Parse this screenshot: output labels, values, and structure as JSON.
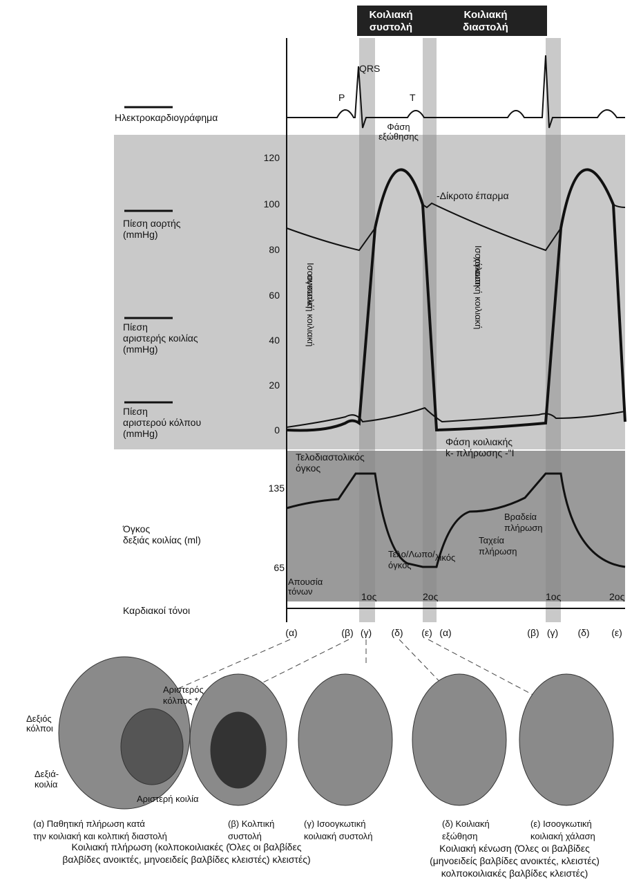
{
  "header": {
    "systole": [
      "Κοιλιακή",
      "συστολή"
    ],
    "diastole": [
      "Κοιλιακή",
      "διαστολή"
    ]
  },
  "rows": {
    "ecg": "Ηλεκτροκαρδιογράφημα",
    "aortic": [
      "Πίεση     αορτής",
      "(mmHg)"
    ],
    "ventricle": [
      "Πίεση",
      "αριστερής      κοιλίας",
      "(mmHg)"
    ],
    "atrium": [
      "Πίεση",
      "αριστερού       κόλπου",
      "(mmHg)"
    ],
    "volume": [
      "Όγκος",
      "δεξιάς κοιλίας (ml)"
    ],
    "sounds": "Καρδιακοί τόνοι"
  },
  "pressure_axis": {
    "ticks": [
      120,
      100,
      80,
      60,
      40,
      20,
      0
    ]
  },
  "volume_axis": {
    "ticks": [
      135,
      65
    ]
  },
  "annotations": {
    "qrs": "QRS",
    "p": "P",
    "t": "T",
    "ejection": [
      "Φάση",
      "εξώθησης"
    ],
    "dicrotic": "-Δίκροτο έπαρμα",
    "iso_systole": [
      "Ισοογκωτική κοιλιακή",
      "συστολή"
    ],
    "iso_relax": [
      "Ισοογκωτική κοιλιακή",
      "χάλαση"
    ],
    "filling": [
      "Φάση κοιλιακής",
      "k- πλήρωσης -\"I"
    ],
    "edv": [
      "Τελοδιαστολικός",
      "όγκος"
    ],
    "slow": [
      "Βραδεία",
      "πλήρωση"
    ],
    "fast": [
      "Ταχεία",
      "πλήρωση"
    ],
    "esv": [
      "Τελο/Λωπο/",
      "όγκος"
    ],
    "esv2": "λικός",
    "no_sounds": [
      "Απουσία",
      "τόνων"
    ],
    "s1": "1ος",
    "s2": "2ος",
    "s1b": "1ος",
    "s2b": "2ος"
  },
  "phases": [
    "(α)",
    "(β)",
    "(γ)",
    "(δ)",
    "(ε)",
    "(α)",
    "(β)",
    "(γ)",
    "(δ)",
    "(ε)"
  ],
  "captions": {
    "a": [
      "(α) Παθητική πλήρωση κατά",
      "την κοιλιακή και κολπική διαστολή"
    ],
    "b": [
      "(β) Κολπική",
      "συστολή"
    ],
    "c": [
      "(γ) Ισοογκωτική",
      "κοιλιακή συστολή"
    ],
    "d": [
      "(δ) Κοιλιακή",
      "εξώθηση"
    ],
    "e": [
      "(ε) Ισοογκωτική",
      "κοιλιακή χάλαση"
    ]
  },
  "heart_labels": {
    "la": [
      "Αριστερός",
      "κόλπος *"
    ],
    "ra": [
      "Δεξιός",
      "κόλποι"
    ],
    "rv": [
      "Δεξιά-",
      "κοιλία"
    ],
    "lv": "Αριστερή κοιλία"
  },
  "footer": {
    "left": [
      "Κοιλιακή πλήρωση (κολποκοιλιακές (Όλες οι βαλβίδες",
      "βαλβίδες ανοικτές, μηνοειδείς βαλβίδες κλειστές) κλειστές)"
    ],
    "right": [
      "Κοιλιακή κένωση (Όλες οι βαλβίδες",
      "(μηνοειδείς βαλβίδες ανοικτές, κλειστές)",
      "κολποκοιλιακές βαλβίδες κλειστές)"
    ]
  }
}
